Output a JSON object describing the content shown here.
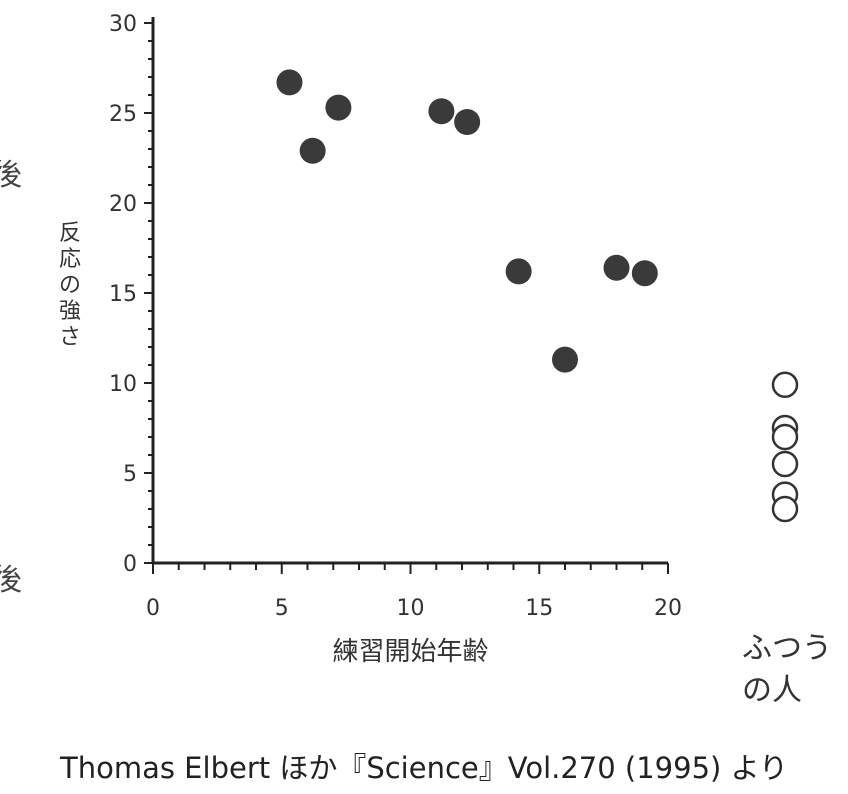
{
  "chart_data": {
    "type": "scatter",
    "ylabel": "反応の強さ",
    "xlabel": "練習開始年齢",
    "xlim": [
      0,
      20
    ],
    "ylim": [
      0,
      30
    ],
    "x_ticks": [
      0,
      5,
      10,
      15,
      20
    ],
    "y_ticks": [
      0,
      5,
      10,
      15,
      20,
      25,
      30
    ],
    "series": [
      {
        "marker": "filled-circle",
        "color": "#3a3a3a",
        "points": [
          {
            "x": 5.3,
            "y": 26.7
          },
          {
            "x": 6.2,
            "y": 22.9
          },
          {
            "x": 7.2,
            "y": 25.3
          },
          {
            "x": 11.2,
            "y": 25.1
          },
          {
            "x": 12.2,
            "y": 24.5
          },
          {
            "x": 14.2,
            "y": 16.2
          },
          {
            "x": 16.0,
            "y": 11.3
          },
          {
            "x": 18.0,
            "y": 16.4
          },
          {
            "x": 19.1,
            "y": 16.1
          }
        ]
      },
      {
        "marker": "open-circle",
        "color": "#333333",
        "category_label": "ふつうの人",
        "values": [
          9.9,
          7.5,
          7.0,
          5.5,
          3.8,
          3.0
        ]
      }
    ],
    "category_label_lines": [
      "ふつう",
      "の人"
    ],
    "grid": false
  },
  "caption": "Thomas Elbert ほか『Science』Vol.270 (1995) より",
  "side_glyphs": [
    "後",
    "後"
  ]
}
